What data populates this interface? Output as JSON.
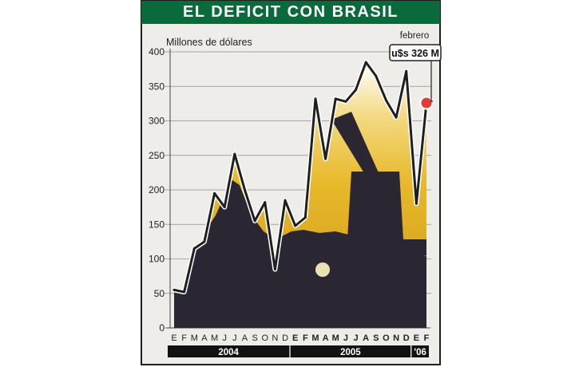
{
  "title": "EL DEFICIT CON BRASIL",
  "colors": {
    "title_bg": "#0b6a3c",
    "area_dark": "#2a2733",
    "area_gold": "#e2b628",
    "marker": "#e03c31",
    "background": "#eeedea"
  },
  "chart_data": {
    "type": "area",
    "title": "EL DEFICIT CON BRASIL",
    "ylabel": "Millones de dólares",
    "ylim": [
      0,
      400
    ],
    "yticks": [
      0,
      50,
      100,
      150,
      200,
      250,
      300,
      350,
      400
    ],
    "grid": true,
    "x": [
      "E",
      "F",
      "M",
      "A",
      "M",
      "J",
      "J",
      "A",
      "S",
      "O",
      "N",
      "D",
      "E",
      "F",
      "M",
      "A",
      "M",
      "J",
      "J",
      "A",
      "S",
      "O",
      "N",
      "D",
      "E",
      "F"
    ],
    "year_groups": [
      {
        "label": "2004",
        "count": 12
      },
      {
        "label": "2005",
        "count": 12
      },
      {
        "label": "'06",
        "count": 2
      }
    ],
    "series": [
      {
        "values": [
          55,
          52,
          115,
          125,
          195,
          175,
          252,
          200,
          155,
          182,
          85,
          185,
          148,
          160,
          332,
          245,
          332,
          328,
          345,
          385,
          365,
          330,
          305,
          372,
          180,
          326
        ]
      }
    ],
    "annotation": {
      "label": "febrero",
      "value_text": "u$s 326 M"
    }
  }
}
